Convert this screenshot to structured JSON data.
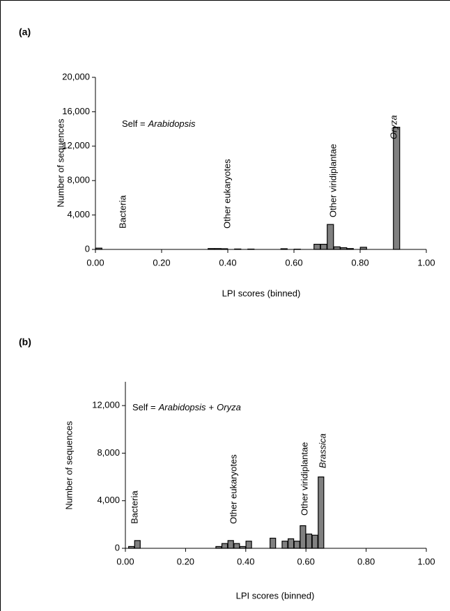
{
  "chart_data": [
    {
      "type": "bar",
      "panel": "(a)",
      "x": [
        0.01,
        0.35,
        0.37,
        0.39,
        0.43,
        0.47,
        0.57,
        0.61,
        0.67,
        0.69,
        0.71,
        0.73,
        0.75,
        0.77,
        0.81,
        0.91
      ],
      "values": [
        150,
        100,
        100,
        80,
        50,
        40,
        80,
        30,
        600,
        600,
        2900,
        300,
        200,
        100,
        250,
        14200
      ],
      "color": "#808080",
      "xlim": [
        0,
        1
      ],
      "xticks": [
        {
          "value": 0,
          "label": "0.00"
        },
        {
          "value": 0.2,
          "label": "0.20"
        },
        {
          "value": 0.4,
          "label": "0.40"
        },
        {
          "value": 0.6,
          "label": "0.60"
        },
        {
          "value": 0.8,
          "label": "0.80"
        },
        {
          "value": 1,
          "label": "1.00"
        }
      ],
      "ylim": [
        0,
        20000
      ],
      "yticks": [
        0,
        {
          "value": 4000,
          "label": "4,000"
        },
        {
          "value": 8000,
          "label": "8,000"
        },
        {
          "value": 12000,
          "label": "12,000"
        },
        {
          "value": 16000,
          "label": "16,000"
        },
        {
          "value": 20000,
          "label": "20,000"
        }
      ],
      "x_label": "LPI scores (binned)",
      "y_label": "Number of sequences",
      "self_label": [
        "Self =",
        "Arabidopsis"
      ],
      "annotations": [
        "Bacteria",
        "Other eukaryotes",
        "Other viridiplantae",
        "Oryza"
      ]
    },
    {
      "type": "bar",
      "panel": "(b)",
      "x": [
        0.02,
        0.04,
        0.31,
        0.33,
        0.35,
        0.37,
        0.39,
        0.41,
        0.49,
        0.53,
        0.55,
        0.57,
        0.59,
        0.61,
        0.63,
        0.65
      ],
      "values": [
        150,
        650,
        150,
        400,
        650,
        400,
        150,
        600,
        850,
        600,
        800,
        600,
        1900,
        1200,
        1100,
        6000
      ],
      "color": "#808080",
      "xlim": [
        0,
        1
      ],
      "xticks": [
        {
          "value": 0,
          "label": "0.00"
        },
        {
          "value": 0.2,
          "label": "0.20"
        },
        {
          "value": 0.4,
          "label": "0.40"
        },
        {
          "value": 0.6,
          "label": "0.60"
        },
        {
          "value": 0.8,
          "label": "0.80"
        },
        {
          "value": 1,
          "label": "1.00"
        }
      ],
      "ylim": [
        0,
        14000
      ],
      "yticks": [
        0,
        {
          "value": 4000,
          "label": "4,000"
        },
        {
          "value": 8000,
          "label": "8,000"
        },
        {
          "value": 12000,
          "label": "12,000"
        }
      ],
      "x_label": "LPI scores (binned)",
      "y_label": "Number of sequences",
      "self_label": [
        "Self =",
        "Arabidopsis",
        "+",
        "Oryza"
      ],
      "annotations": [
        "Bacteria",
        "Other eukaryotes",
        "Other viridiplantae",
        "Brassica"
      ]
    }
  ]
}
